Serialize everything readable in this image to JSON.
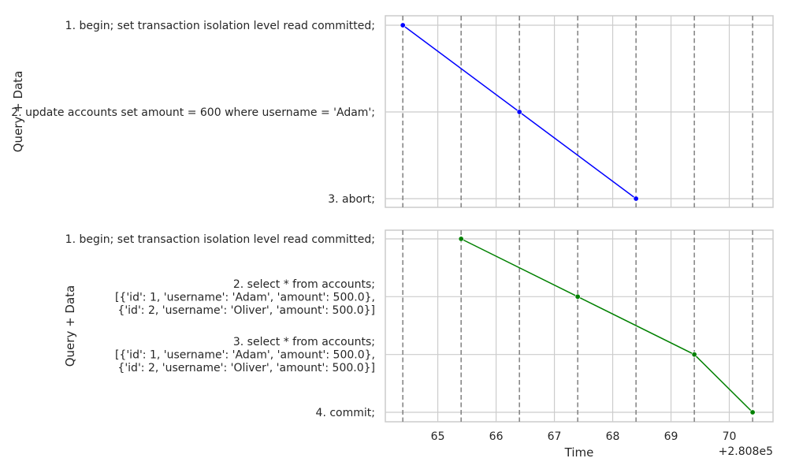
{
  "chart_data": [
    {
      "type": "line",
      "ylabel": "Query + Data",
      "xlabel": "",
      "xlim": [
        280864.1,
        280870.75
      ],
      "x_offset_text": "",
      "vlines": [
        280864.4,
        280865.4,
        280866.4,
        280867.4,
        280868.4,
        280869.4,
        280870.4
      ],
      "categories": [
        [
          "1. begin; set transaction isolation level read committed;"
        ],
        [
          "2. update accounts set amount = 600 where username = 'Adam';"
        ],
        [
          "3. abort;"
        ]
      ],
      "series": [
        {
          "color": "#0000ff",
          "x": [
            280864.4,
            280866.4,
            280868.4
          ],
          "y": [
            0,
            1,
            2
          ]
        }
      ]
    },
    {
      "type": "line",
      "ylabel": "Query + Data",
      "xlabel": "Time",
      "xlim": [
        280864.1,
        280870.75
      ],
      "xticks": [
        280865,
        280866,
        280867,
        280868,
        280869,
        280870
      ],
      "xtick_labels": [
        "65",
        "66",
        "67",
        "68",
        "69",
        "70"
      ],
      "x_offset_text": "+2.808e5",
      "vlines": [
        280864.4,
        280865.4,
        280866.4,
        280867.4,
        280868.4,
        280869.4,
        280870.4
      ],
      "categories": [
        [
          "1. begin; set transaction isolation level read committed;"
        ],
        [
          "2. select * from accounts;",
          "[{'id': 1, 'username': 'Adam', 'amount': 500.0},",
          "{'id': 2, 'username': 'Oliver', 'amount': 500.0}]"
        ],
        [
          "3. select * from accounts;",
          "[{'id': 1, 'username': 'Adam', 'amount': 500.0},",
          "{'id': 2, 'username': 'Oliver', 'amount': 500.0}]"
        ],
        [
          "4. commit;"
        ]
      ],
      "series": [
        {
          "color": "#008000",
          "x": [
            280865.4,
            280867.4,
            280869.4,
            280870.4
          ],
          "y": [
            0,
            1,
            2,
            3
          ]
        }
      ]
    }
  ]
}
